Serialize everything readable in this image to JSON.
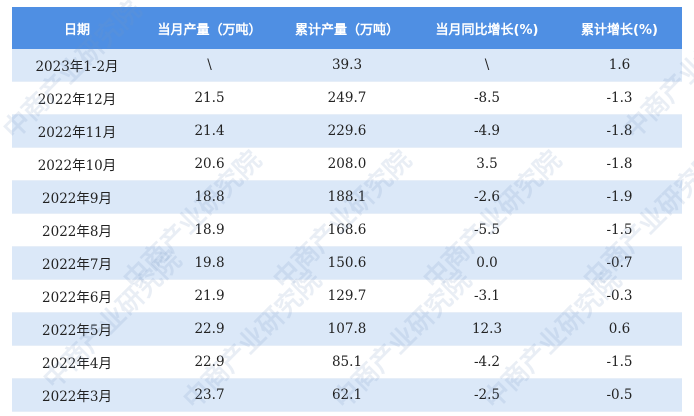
{
  "table": {
    "header": [
      "日期",
      "当月产量（万吨）",
      "累计产量（万吨）",
      "当月同比增长(%)",
      "累计增长(%)"
    ],
    "rows": [
      [
        "2023年1-2月",
        "\\",
        "39.3",
        "\\",
        "1.6"
      ],
      [
        "2022年12月",
        "21.5",
        "249.7",
        "-8.5",
        "-1.3"
      ],
      [
        "2022年11月",
        "21.4",
        "229.6",
        "-4.9",
        "-1.8"
      ],
      [
        "2022年10月",
        "20.6",
        "208.0",
        "3.5",
        "-1.8"
      ],
      [
        "2022年9月",
        "18.8",
        "188.1",
        "-2.6",
        "-1.9"
      ],
      [
        "2022年8月",
        "18.9",
        "168.6",
        "-5.5",
        "-1.5"
      ],
      [
        "2022年7月",
        "19.8",
        "150.6",
        "0.0",
        "-0.7"
      ],
      [
        "2022年6月",
        "21.9",
        "129.7",
        "-3.1",
        "-0.3"
      ],
      [
        "2022年5月",
        "22.9",
        "107.8",
        "12.3",
        "0.6"
      ],
      [
        "2022年4月",
        "22.9",
        "85.1",
        "-4.2",
        "-1.5"
      ],
      [
        "2022年3月",
        "23.7",
        "62.1",
        "-2.5",
        "-0.5"
      ]
    ]
  },
  "watermark": "中商产业研究院"
}
